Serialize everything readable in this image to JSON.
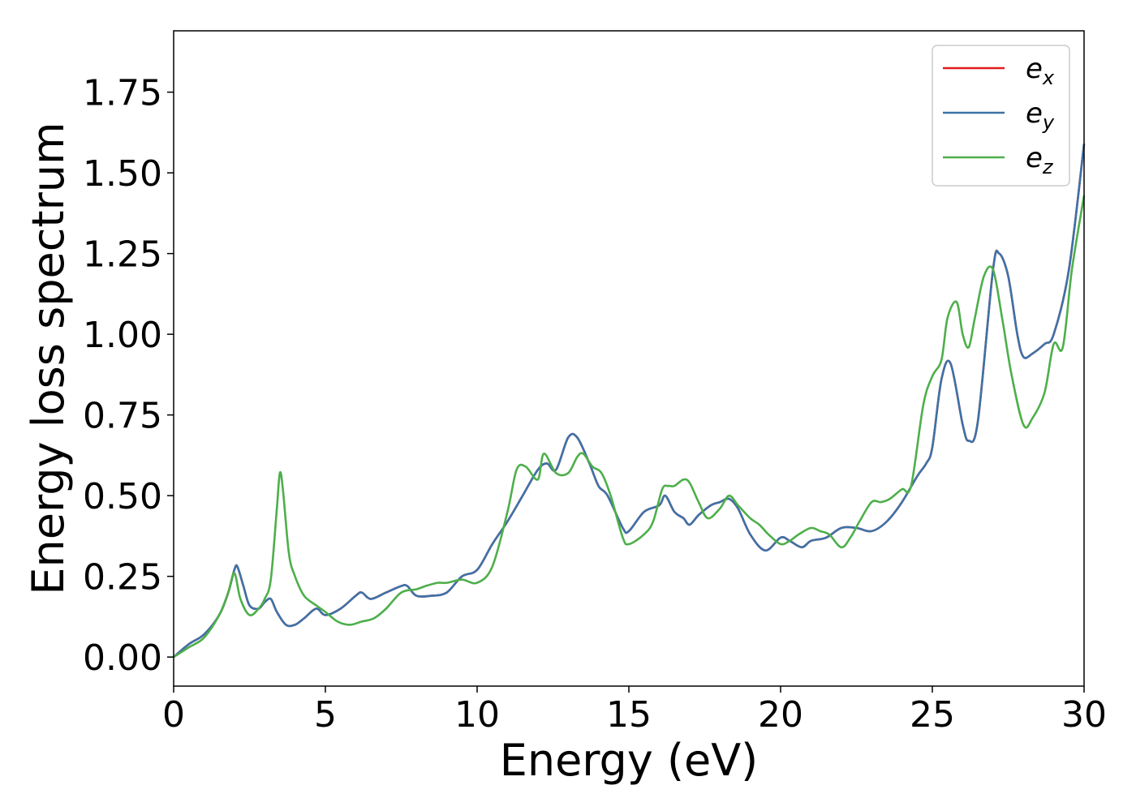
{
  "chart_data": {
    "type": "line",
    "xlabel": "Energy (eV)",
    "ylabel": "Energy loss spectrum",
    "xlim": [
      0,
      30
    ],
    "ylim": [
      -0.09,
      1.94
    ],
    "xticks": [
      0,
      5,
      10,
      15,
      20,
      25,
      30
    ],
    "yticks": [
      0.0,
      0.25,
      0.5,
      0.75,
      1.0,
      1.25,
      1.5,
      1.75
    ],
    "ytick_labels": [
      "0.00",
      "0.25",
      "0.50",
      "0.75",
      "1.00",
      "1.25",
      "1.50",
      "1.75"
    ],
    "grid": false,
    "legend": {
      "placement": "top-right"
    },
    "series": [
      {
        "name": "e",
        "subscript": "x",
        "color": "#e41a1c",
        "x": [
          0,
          0.5,
          1.0,
          1.5,
          1.8,
          2.0,
          2.1,
          2.3,
          2.5,
          2.8,
          3.0,
          3.2,
          3.4,
          3.7,
          4.0,
          4.3,
          4.7,
          5.0,
          5.5,
          6.0,
          6.2,
          6.5,
          7.0,
          7.5,
          7.7,
          8.0,
          8.5,
          9.0,
          9.5,
          10.0,
          10.5,
          11.0,
          11.5,
          12.0,
          12.3,
          12.6,
          13.0,
          13.3,
          13.7,
          14.0,
          14.3,
          14.8,
          15.0,
          15.5,
          16.0,
          16.2,
          16.5,
          16.8,
          17.0,
          17.3,
          17.7,
          18.0,
          18.3,
          18.6,
          19.0,
          19.5,
          20.0,
          20.3,
          20.7,
          21.0,
          21.5,
          22.0,
          22.5,
          23.0,
          23.5,
          24.0,
          24.5,
          24.8,
          25.0,
          25.3,
          25.6,
          26.0,
          26.2,
          26.5,
          27.0,
          27.2,
          27.5,
          27.8,
          28.0,
          28.3,
          28.7,
          29.0,
          29.5,
          30.0
        ],
        "values": [
          0.0,
          0.04,
          0.07,
          0.13,
          0.2,
          0.27,
          0.28,
          0.22,
          0.16,
          0.15,
          0.17,
          0.18,
          0.14,
          0.1,
          0.1,
          0.12,
          0.15,
          0.13,
          0.15,
          0.19,
          0.2,
          0.18,
          0.2,
          0.22,
          0.22,
          0.19,
          0.19,
          0.2,
          0.25,
          0.27,
          0.35,
          0.42,
          0.5,
          0.58,
          0.6,
          0.58,
          0.68,
          0.68,
          0.6,
          0.53,
          0.5,
          0.4,
          0.39,
          0.45,
          0.47,
          0.5,
          0.45,
          0.43,
          0.41,
          0.44,
          0.47,
          0.48,
          0.49,
          0.46,
          0.38,
          0.33,
          0.37,
          0.36,
          0.34,
          0.36,
          0.37,
          0.4,
          0.4,
          0.39,
          0.42,
          0.48,
          0.56,
          0.6,
          0.65,
          0.86,
          0.91,
          0.72,
          0.67,
          0.73,
          1.2,
          1.25,
          1.18,
          1.0,
          0.93,
          0.94,
          0.97,
          1.0,
          1.2,
          1.59
        ]
      },
      {
        "name": "e",
        "subscript": "y",
        "color": "#3d72a8",
        "x": [
          0,
          0.5,
          1.0,
          1.5,
          1.8,
          2.0,
          2.1,
          2.3,
          2.5,
          2.8,
          3.0,
          3.2,
          3.4,
          3.7,
          4.0,
          4.3,
          4.7,
          5.0,
          5.5,
          6.0,
          6.2,
          6.5,
          7.0,
          7.5,
          7.7,
          8.0,
          8.5,
          9.0,
          9.5,
          10.0,
          10.5,
          11.0,
          11.5,
          12.0,
          12.3,
          12.6,
          13.0,
          13.3,
          13.7,
          14.0,
          14.3,
          14.8,
          15.0,
          15.5,
          16.0,
          16.2,
          16.5,
          16.8,
          17.0,
          17.3,
          17.7,
          18.0,
          18.3,
          18.6,
          19.0,
          19.5,
          20.0,
          20.3,
          20.7,
          21.0,
          21.5,
          22.0,
          22.5,
          23.0,
          23.5,
          24.0,
          24.5,
          24.8,
          25.0,
          25.3,
          25.6,
          26.0,
          26.2,
          26.5,
          27.0,
          27.2,
          27.5,
          27.8,
          28.0,
          28.3,
          28.7,
          29.0,
          29.5,
          30.0
        ],
        "values": [
          0.0,
          0.04,
          0.07,
          0.13,
          0.2,
          0.27,
          0.28,
          0.22,
          0.16,
          0.15,
          0.17,
          0.18,
          0.14,
          0.1,
          0.1,
          0.12,
          0.15,
          0.13,
          0.15,
          0.19,
          0.2,
          0.18,
          0.2,
          0.22,
          0.22,
          0.19,
          0.19,
          0.2,
          0.25,
          0.27,
          0.35,
          0.42,
          0.5,
          0.58,
          0.6,
          0.58,
          0.68,
          0.68,
          0.6,
          0.53,
          0.5,
          0.4,
          0.39,
          0.45,
          0.47,
          0.5,
          0.45,
          0.43,
          0.41,
          0.44,
          0.47,
          0.48,
          0.49,
          0.46,
          0.38,
          0.33,
          0.37,
          0.36,
          0.34,
          0.36,
          0.37,
          0.4,
          0.4,
          0.39,
          0.42,
          0.48,
          0.56,
          0.6,
          0.65,
          0.86,
          0.91,
          0.72,
          0.67,
          0.73,
          1.2,
          1.25,
          1.18,
          1.0,
          0.93,
          0.94,
          0.97,
          1.0,
          1.2,
          1.59
        ]
      },
      {
        "name": "e",
        "subscript": "z",
        "color": "#4daf4a",
        "x": [
          0,
          0.5,
          1.0,
          1.5,
          1.8,
          2.0,
          2.2,
          2.5,
          2.8,
          3.0,
          3.2,
          3.4,
          3.5,
          3.6,
          3.8,
          4.0,
          4.3,
          4.7,
          5.0,
          5.4,
          5.8,
          6.2,
          6.6,
          7.0,
          7.5,
          8.0,
          8.3,
          8.7,
          9.0,
          9.5,
          10.0,
          10.5,
          11.0,
          11.3,
          11.6,
          12.0,
          12.2,
          12.6,
          13.0,
          13.3,
          13.5,
          13.8,
          14.1,
          14.4,
          14.8,
          15.0,
          15.5,
          15.8,
          16.1,
          16.3,
          16.5,
          16.8,
          17.0,
          17.3,
          17.6,
          18.0,
          18.3,
          18.6,
          19.0,
          19.3,
          19.6,
          20.0,
          20.3,
          20.6,
          21.0,
          21.3,
          21.6,
          22.0,
          22.3,
          22.6,
          23.0,
          23.3,
          23.6,
          24.0,
          24.3,
          24.7,
          25.0,
          25.3,
          25.5,
          25.8,
          26.0,
          26.2,
          26.4,
          26.7,
          27.0,
          27.3,
          27.6,
          28.0,
          28.3,
          28.7,
          29.0,
          29.3,
          29.6,
          30.0
        ],
        "values": [
          0.0,
          0.03,
          0.06,
          0.13,
          0.2,
          0.26,
          0.18,
          0.13,
          0.15,
          0.18,
          0.24,
          0.46,
          0.57,
          0.52,
          0.32,
          0.25,
          0.19,
          0.16,
          0.14,
          0.11,
          0.1,
          0.11,
          0.12,
          0.15,
          0.2,
          0.21,
          0.22,
          0.23,
          0.23,
          0.24,
          0.23,
          0.28,
          0.45,
          0.58,
          0.59,
          0.55,
          0.63,
          0.57,
          0.57,
          0.62,
          0.63,
          0.59,
          0.57,
          0.5,
          0.37,
          0.35,
          0.38,
          0.42,
          0.52,
          0.53,
          0.53,
          0.55,
          0.54,
          0.48,
          0.43,
          0.46,
          0.5,
          0.47,
          0.43,
          0.41,
          0.38,
          0.35,
          0.36,
          0.38,
          0.4,
          0.39,
          0.38,
          0.34,
          0.37,
          0.42,
          0.48,
          0.48,
          0.49,
          0.52,
          0.53,
          0.78,
          0.87,
          0.92,
          1.05,
          1.1,
          1.0,
          0.96,
          1.05,
          1.18,
          1.2,
          1.05,
          0.88,
          0.72,
          0.74,
          0.82,
          0.97,
          0.96,
          1.2,
          1.43
        ]
      }
    ]
  }
}
